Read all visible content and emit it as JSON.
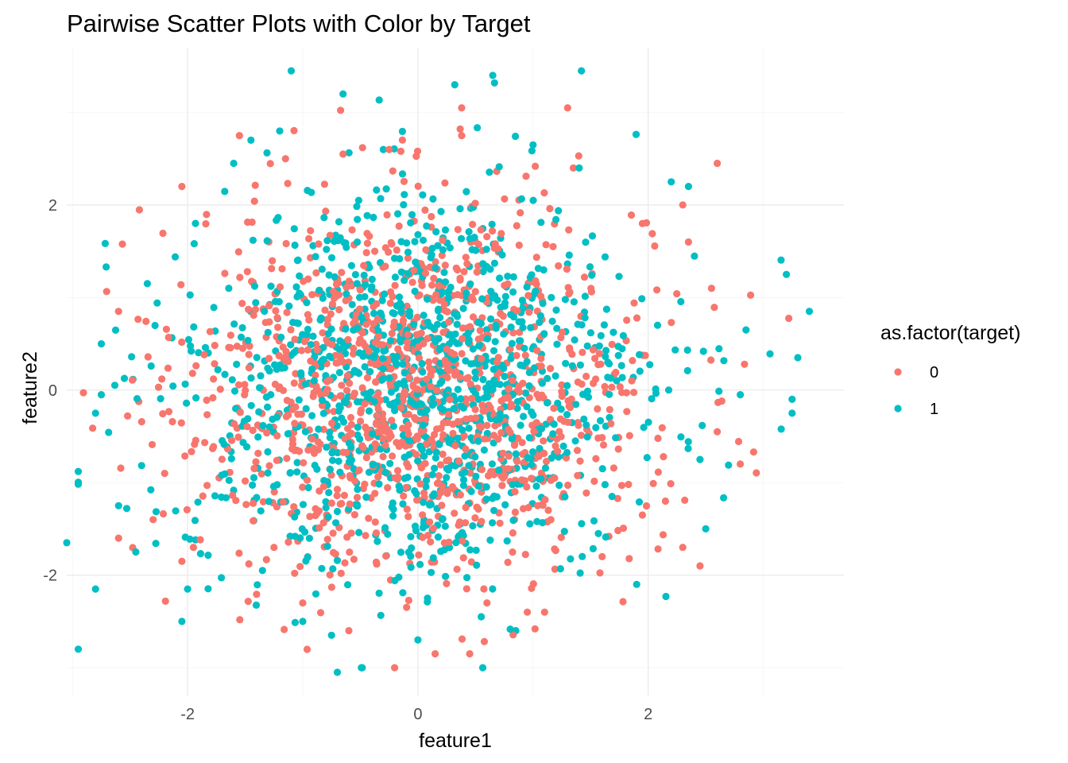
{
  "chart_data": {
    "type": "scatter",
    "title": "Pairwise Scatter Plots with Color by Target",
    "xlabel": "feature1",
    "ylabel": "feature2",
    "xlim": [
      -3.05,
      3.7
    ],
    "ylim": [
      -3.3,
      3.7
    ],
    "x_ticks": [
      -2,
      0,
      2
    ],
    "y_ticks": [
      -2,
      0,
      2
    ],
    "x_tick_labels": [
      "-2",
      "0",
      "2"
    ],
    "y_tick_labels": [
      "-2",
      "0",
      "2"
    ],
    "grid": true,
    "legend": {
      "title": "as.factor(target)",
      "placement": "right",
      "entries": [
        "0",
        "1"
      ]
    },
    "series": [
      {
        "name": "0",
        "color": "#F8766D",
        "points_per_series": 1200,
        "distribution": "bivariate-normal, mean 0, sd 1",
        "highlighted_points": [
          [
            -2.6,
            0.85
          ],
          [
            -2.05,
            2.2
          ],
          [
            -1.15,
            2.5
          ],
          [
            -1.55,
            2.75
          ],
          [
            -0.65,
            2.55
          ],
          [
            -0.25,
            2.6
          ],
          [
            0.38,
            3.05
          ],
          [
            0.38,
            2.75
          ],
          [
            1.3,
            3.05
          ],
          [
            1.35,
            2.4
          ],
          [
            2.6,
            2.45
          ],
          [
            2.3,
            2.0
          ],
          [
            2.35,
            1.6
          ],
          [
            1.95,
            1.8
          ],
          [
            2.55,
            1.1
          ],
          [
            2.6,
            -0.45
          ],
          [
            2.8,
            -0.8
          ],
          [
            2.45,
            -1.9
          ],
          [
            2.3,
            -1.7
          ],
          [
            2.15,
            -1.2
          ],
          [
            1.95,
            -1.35
          ],
          [
            1.6,
            -1.8
          ],
          [
            1.1,
            -2.4
          ],
          [
            0.15,
            -2.85
          ],
          [
            0.45,
            -2.85
          ],
          [
            -0.6,
            -2.6
          ],
          [
            -1.25,
            -1.7
          ],
          [
            -1.95,
            -1.7
          ],
          [
            -2.6,
            -1.6
          ],
          [
            -2.3,
            -1.4
          ],
          [
            -2.05,
            -1.85
          ],
          [
            -1.0,
            -2.3
          ],
          [
            0.6,
            -2.3
          ],
          [
            0.95,
            -2.4
          ],
          [
            -2.2,
            -0.9
          ]
        ]
      },
      {
        "name": "1",
        "color": "#00BFC4",
        "points_per_series": 1200,
        "distribution": "bivariate-normal, mean 0, sd 1",
        "highlighted_points": [
          [
            -1.1,
            3.45
          ],
          [
            -0.65,
            3.2
          ],
          [
            0.32,
            3.3
          ],
          [
            0.65,
            3.4
          ],
          [
            1.42,
            3.45
          ],
          [
            -1.2,
            2.8
          ],
          [
            -1.45,
            2.7
          ],
          [
            -1.6,
            2.45
          ],
          [
            -0.3,
            2.6
          ],
          [
            1.0,
            2.65
          ],
          [
            1.4,
            2.4
          ],
          [
            2.2,
            2.25
          ],
          [
            2.35,
            2.2
          ],
          [
            3.2,
            1.25
          ],
          [
            3.4,
            0.85
          ],
          [
            2.85,
            0.65
          ],
          [
            3.3,
            0.35
          ],
          [
            3.25,
            -0.1
          ],
          [
            3.25,
            -0.25
          ],
          [
            2.8,
            -0.05
          ],
          [
            2.45,
            -0.75
          ],
          [
            2.5,
            -1.5
          ],
          [
            1.9,
            -2.1
          ],
          [
            0.85,
            -2.6
          ],
          [
            0.55,
            -2.45
          ],
          [
            0.0,
            -2.7
          ],
          [
            -0.7,
            -3.05
          ],
          [
            -0.75,
            -2.65
          ],
          [
            -1.0,
            -2.5
          ],
          [
            -2.05,
            -2.5
          ],
          [
            -2.8,
            -2.15
          ],
          [
            -3.05,
            -1.65
          ],
          [
            -2.45,
            -1.75
          ],
          [
            -2.6,
            -1.25
          ],
          [
            -2.35,
            1.15
          ],
          [
            -2.75,
            0.5
          ],
          [
            -2.75,
            -0.05
          ],
          [
            -2.8,
            -0.25
          ],
          [
            -1.35,
            -1.95
          ],
          [
            -2.0,
            -2.15
          ]
        ]
      }
    ]
  }
}
